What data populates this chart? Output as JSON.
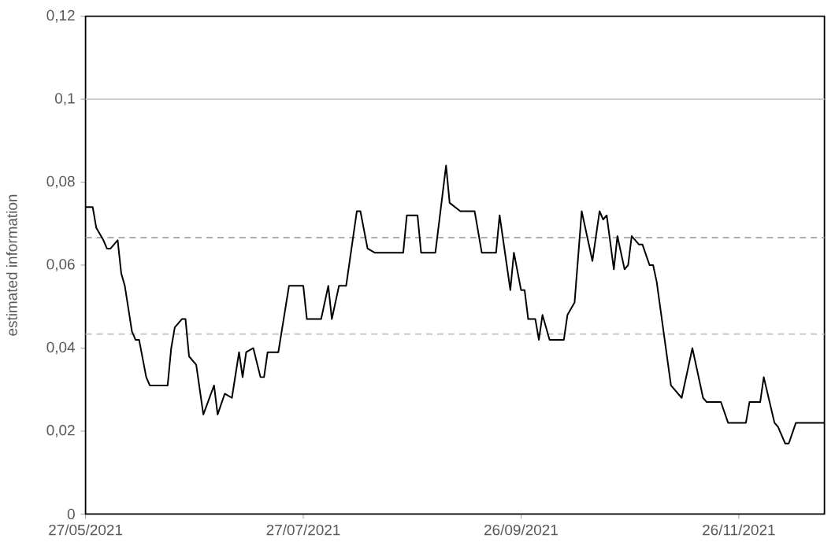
{
  "chart_data": {
    "type": "line",
    "ylabel": "estimated information",
    "x": [
      "2021-05-27",
      "2021-05-29",
      "2021-05-30",
      "2021-06-01",
      "2021-06-02",
      "2021-06-03",
      "2021-06-05",
      "2021-06-06",
      "2021-06-07",
      "2021-06-09",
      "2021-06-10",
      "2021-06-11",
      "2021-06-13",
      "2021-06-14",
      "2021-06-19",
      "2021-06-20",
      "2021-06-21",
      "2021-06-23",
      "2021-06-24",
      "2021-06-25",
      "2021-06-27",
      "2021-06-29",
      "2021-07-02",
      "2021-07-03",
      "2021-07-05",
      "2021-07-07",
      "2021-07-09",
      "2021-07-10",
      "2021-07-11",
      "2021-07-13",
      "2021-07-15",
      "2021-07-16",
      "2021-07-17",
      "2021-07-20",
      "2021-07-23",
      "2021-07-27",
      "2021-07-28",
      "2021-08-01",
      "2021-08-03",
      "2021-08-04",
      "2021-08-06",
      "2021-08-08",
      "2021-08-11",
      "2021-08-12",
      "2021-08-14",
      "2021-08-16",
      "2021-08-24",
      "2021-08-25",
      "2021-08-28",
      "2021-08-29",
      "2021-09-02",
      "2021-09-05",
      "2021-09-06",
      "2021-09-09",
      "2021-09-12",
      "2021-09-13",
      "2021-09-15",
      "2021-09-19",
      "2021-09-20",
      "2021-09-23",
      "2021-09-24",
      "2021-09-26",
      "2021-09-27",
      "2021-09-28",
      "2021-09-30",
      "2021-10-01",
      "2021-10-02",
      "2021-10-04",
      "2021-10-05",
      "2021-10-08",
      "2021-10-09",
      "2021-10-11",
      "2021-10-13",
      "2021-10-16",
      "2021-10-18",
      "2021-10-19",
      "2021-10-20",
      "2021-10-22",
      "2021-10-23",
      "2021-10-25",
      "2021-10-26",
      "2021-10-27",
      "2021-10-29",
      "2021-10-30",
      "2021-11-01",
      "2021-11-02",
      "2021-11-03",
      "2021-11-07",
      "2021-11-09",
      "2021-11-10",
      "2021-11-13",
      "2021-11-16",
      "2021-11-17",
      "2021-11-21",
      "2021-11-23",
      "2021-11-28",
      "2021-11-29",
      "2021-12-02",
      "2021-12-03",
      "2021-12-06",
      "2021-12-07",
      "2021-12-09",
      "2021-12-10",
      "2021-12-12",
      "2021-12-20"
    ],
    "series": [
      {
        "color": "#000000",
        "values": [
          0.074,
          0.074,
          0.069,
          0.066,
          0.064,
          0.064,
          0.066,
          0.058,
          0.055,
          0.044,
          0.042,
          0.042,
          0.033,
          0.031,
          0.031,
          0.04,
          0.045,
          0.047,
          0.047,
          0.038,
          0.036,
          0.024,
          0.031,
          0.024,
          0.029,
          0.028,
          0.039,
          0.033,
          0.039,
          0.04,
          0.033,
          0.033,
          0.039,
          0.039,
          0.055,
          0.055,
          0.047,
          0.047,
          0.055,
          0.047,
          0.055,
          0.055,
          0.073,
          0.073,
          0.064,
          0.063,
          0.063,
          0.072,
          0.072,
          0.063,
          0.063,
          0.084,
          0.075,
          0.073,
          0.073,
          0.073,
          0.063,
          0.063,
          0.072,
          0.054,
          0.063,
          0.054,
          0.054,
          0.047,
          0.047,
          0.042,
          0.048,
          0.042,
          0.042,
          0.042,
          0.048,
          0.051,
          0.073,
          0.061,
          0.073,
          0.071,
          0.072,
          0.059,
          0.067,
          0.059,
          0.06,
          0.067,
          0.065,
          0.065,
          0.06,
          0.06,
          0.056,
          0.031,
          0.029,
          0.028,
          0.04,
          0.028,
          0.027,
          0.027,
          0.022,
          0.022,
          0.027,
          0.027,
          0.033,
          0.022,
          0.021,
          0.017,
          0.017,
          0.022,
          0.022
        ]
      }
    ],
    "xlim": [
      "2021-05-27",
      "2021-12-20"
    ],
    "xticks": [
      {
        "value": "2021-05-27",
        "label": "27/05/2021"
      },
      {
        "value": "2021-07-27",
        "label": "27/07/2021"
      },
      {
        "value": "2021-09-26",
        "label": "26/09/2021"
      },
      {
        "value": "2021-11-26",
        "label": "26/11/2021"
      }
    ],
    "ylim": [
      0,
      0.12
    ],
    "yticks": [
      0,
      {
        "value": 0.02,
        "label": "0,02"
      },
      {
        "value": 0.04,
        "label": "0,04"
      },
      {
        "value": 0.06,
        "label": "0,06"
      },
      {
        "value": 0.08,
        "label": "0,08"
      },
      {
        "value": 0.1,
        "label": "0,1"
      },
      {
        "value": 0.12,
        "label": "0,12"
      }
    ],
    "ref_lines": [
      {
        "axis": "y",
        "value": 0.1,
        "color": "#c8c8c8",
        "line_style": "solid"
      },
      {
        "axis": "y",
        "value": 0.0666,
        "color": "#a0a0a0",
        "line_style": "dashed"
      },
      {
        "axis": "y",
        "value": 0.0434,
        "color": "#c0c0c0",
        "line_style": "dashed"
      }
    ],
    "marker": "none",
    "line_style": "solid"
  }
}
